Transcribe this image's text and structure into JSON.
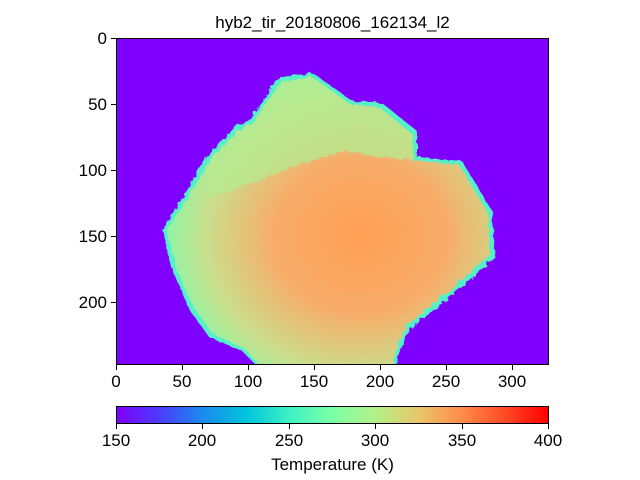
{
  "figure": {
    "title": "hyb2_tir_20180806_162134_l2",
    "colorbar_label": "Temperature (K)"
  },
  "axes": {
    "y_ticks": [
      "0",
      "50",
      "100",
      "150",
      "200"
    ],
    "x_ticks": [
      "0",
      "50",
      "100",
      "150",
      "200",
      "250",
      "300"
    ],
    "colorbar_ticks": [
      "150",
      "200",
      "250",
      "300",
      "350",
      "400"
    ]
  },
  "colors": {
    "background_space": "#7f00ff",
    "asteroid_cool": "#8cf5a0",
    "asteroid_warm": "#f5b370",
    "colormap": "rainbow"
  }
}
